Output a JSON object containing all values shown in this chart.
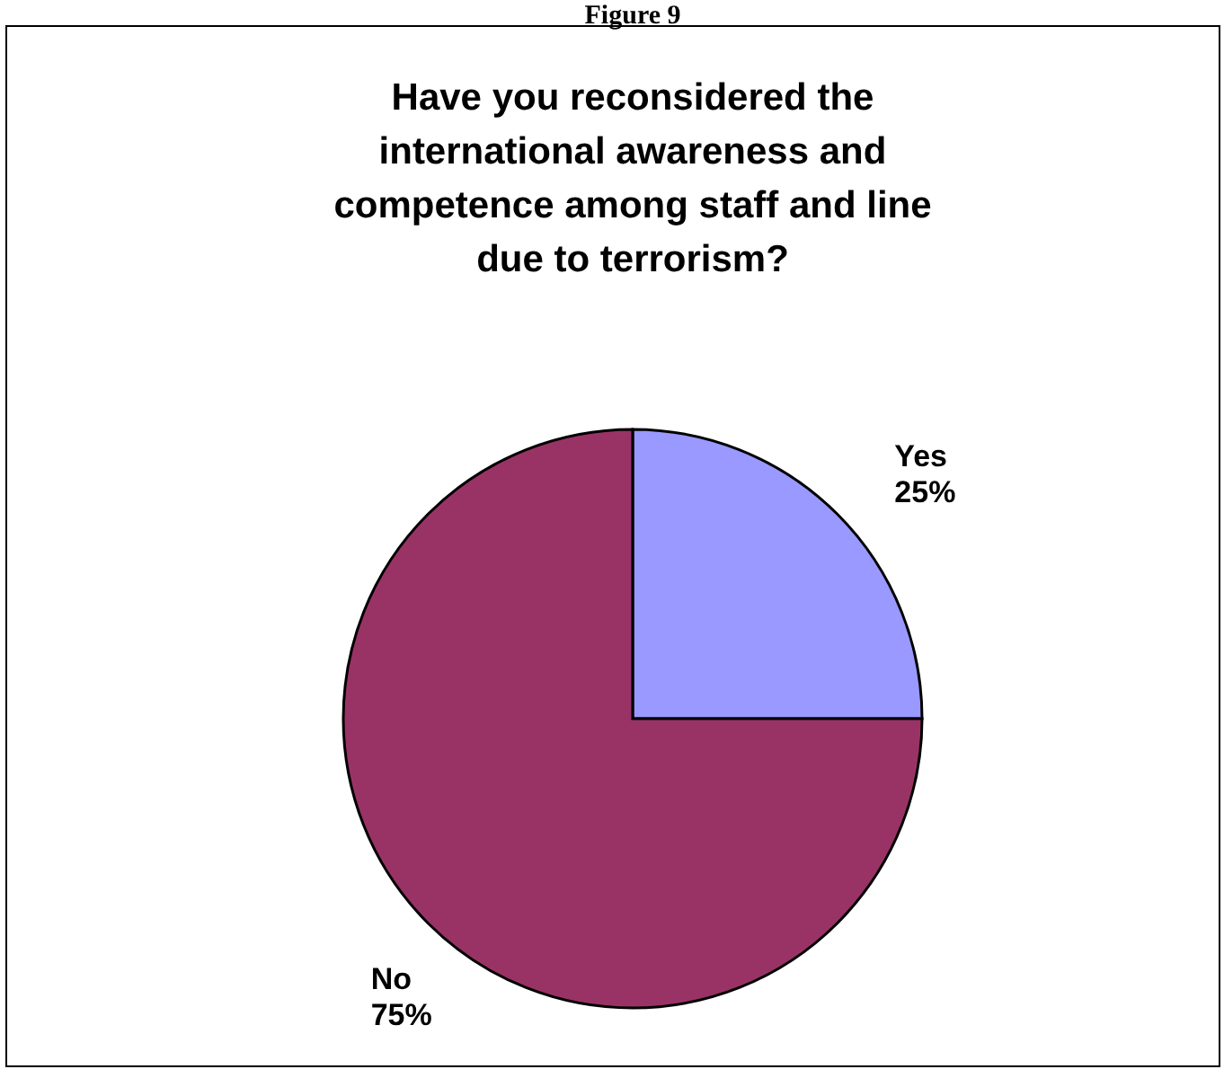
{
  "chart_data": {
    "type": "pie",
    "title": "Have you reconsidered the international awareness and competence among staff and line due to terrorism?",
    "annotations": [
      "Figure 9"
    ],
    "categories": [
      "Yes",
      "No"
    ],
    "values": [
      25,
      75
    ],
    "colors": [
      "#9999ff",
      "#993366"
    ],
    "value_labels": [
      "25%",
      "75%"
    ]
  }
}
